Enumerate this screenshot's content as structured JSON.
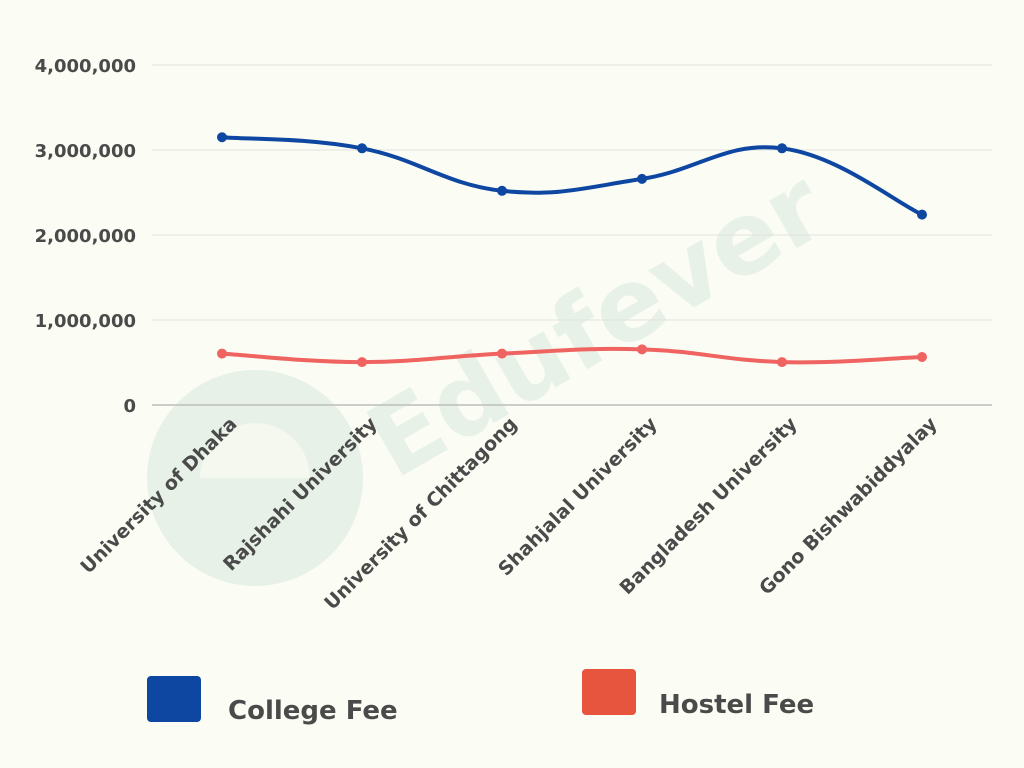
{
  "chart_data": {
    "type": "line",
    "title": "",
    "xlabel": "",
    "ylabel": "",
    "categories": [
      "University of Dhaka",
      "Rajshahi University",
      "University of Chittagong",
      "Shahjalal University",
      "Bangladesh University",
      "Gono Bishwabiddyalay"
    ],
    "series": [
      {
        "name": "College Fee",
        "color": "#0d47a1",
        "values": [
          3150000,
          3020000,
          2520000,
          2660000,
          3020000,
          2240000
        ]
      },
      {
        "name": "Hostel Fee",
        "color": "#ef6461",
        "values": [
          605000,
          505000,
          605000,
          655000,
          505000,
          565000
        ]
      }
    ],
    "ylim": [
      0,
      4000000
    ],
    "yticks": [
      0,
      1000000,
      2000000,
      3000000,
      4000000
    ],
    "ytick_labels": [
      "0",
      "1,000,000",
      "2,000,000",
      "3,000,000",
      "4,000,000"
    ],
    "grid": true,
    "legend_position": "bottom",
    "legend": [
      {
        "label": "College Fee",
        "color": "#0d47a1"
      },
      {
        "label": "Hostel Fee",
        "color": "#e8553f"
      }
    ]
  },
  "watermark": {
    "text": "Edufever",
    "icon": "edufever-logo-icon"
  }
}
